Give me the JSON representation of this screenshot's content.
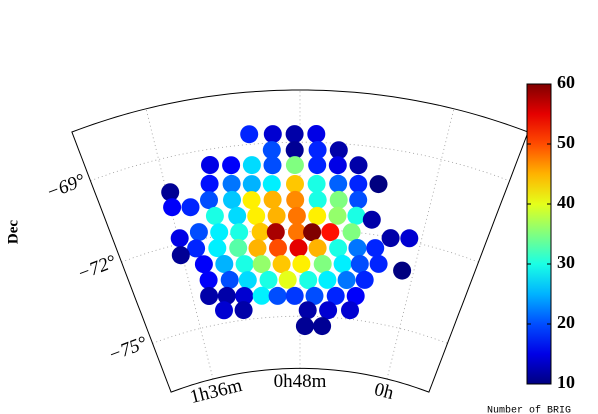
{
  "chart_data": {
    "type": "scatter",
    "ylabel": "Dec",
    "colorbar_label": "Number of BRIG",
    "colormap": "jet",
    "grid": true,
    "xlim": [
      2.0,
      -0.4
    ],
    "ylim": [
      -76.8,
      -67.2
    ],
    "xticks": [
      {
        "value": 1.6,
        "label": "1h36m"
      },
      {
        "value": 0.8,
        "label": "0h48m"
      },
      {
        "value": 0,
        "label": "0h"
      }
    ],
    "yticks": [
      {
        "value": -69,
        "label": "−69°"
      },
      {
        "value": -72,
        "label": "−72°"
      },
      {
        "value": -75,
        "label": "−75°"
      }
    ],
    "clim": [
      10,
      60
    ],
    "cticks": [
      10,
      20,
      30,
      40,
      50,
      60
    ],
    "x": [
      1.08,
      0.95,
      0.83,
      0.71,
      0.96,
      0.83,
      0.7,
      0.58,
      1.32,
      1.2,
      1.08,
      0.96,
      0.83,
      0.7,
      0.58,
      0.46,
      1.34,
      1.21,
      1.09,
      0.97,
      0.83,
      0.7,
      0.57,
      0.45,
      0.33,
      1.58,
      1.36,
      1.22,
      1.1,
      0.97,
      0.83,
      0.69,
      0.56,
      0.44,
      1.59,
      1.48,
      1.34,
      1.2,
      1.08,
      0.95,
      0.82,
      0.69,
      0.56,
      0.44,
      0.34,
      1.46,
      1.33,
      1.2,
      1.06,
      0.96,
      0.82,
      0.72,
      0.6,
      0.46,
      1.59,
      0.2,
      0.08,
      1.5,
      1.36,
      1.22,
      1.09,
      0.95,
      0.81,
      0.68,
      0.54,
      0.41,
      0.29,
      1.61,
      1.47,
      1.33,
      1.19,
      1.07,
      0.93,
      0.79,
      0.64,
      0.5,
      0.38,
      0.25,
      0.08,
      1.46,
      1.31,
      1.18,
      1.03,
      0.89,
      0.74,
      0.6,
      0.46,
      0.33,
      1.48,
      1.35,
      1.22,
      1.09,
      0.97,
      0.84,
      0.69,
      0.53,
      0.38,
      1.39,
      1.24,
      0.74,
      0.58,
      0.41,
      0.76,
      0.62
    ],
    "y": [
      -68.65,
      -68.7,
      -68.72,
      -68.71,
      -69.25,
      -69.27,
      -69.26,
      -69.23,
      -69.54,
      -69.65,
      -69.72,
      -69.77,
      -69.79,
      -69.78,
      -69.75,
      -69.69,
      -70.18,
      -70.29,
      -70.37,
      -70.42,
      -70.44,
      -70.43,
      -70.39,
      -70.33,
      -70.25,
      -70.19,
      -70.73,
      -70.84,
      -70.92,
      -70.96,
      -70.99,
      -70.98,
      -70.94,
      -70.88,
      -70.71,
      -70.85,
      -71.3,
      -71.41,
      -71.48,
      -71.52,
      -71.54,
      -71.53,
      -71.49,
      -71.43,
      -71.5,
      -71.75,
      -71.88,
      -71.98,
      -72.04,
      -72.08,
      -72.1,
      -72.1,
      -72.07,
      -72.01,
      -71.81,
      -72.02,
      -71.9,
      -72.28,
      -72.41,
      -72.51,
      -72.59,
      -72.63,
      -72.65,
      -72.64,
      -72.6,
      -72.53,
      -72.45,
      -72.39,
      -72.87,
      -72.99,
      -73.09,
      -73.15,
      -73.19,
      -73.2,
      -73.18,
      -73.13,
      -73.07,
      -72.97,
      -73.04,
      -73.44,
      -73.56,
      -73.65,
      -73.71,
      -73.74,
      -73.75,
      -73.72,
      -73.67,
      -73.59,
      -73.98,
      -74.09,
      -74.18,
      -74.24,
      -74.28,
      -74.3,
      -74.29,
      -74.25,
      -74.18,
      -74.56,
      -74.66,
      -74.79,
      -74.76,
      -74.69,
      -75.34,
      -75.32
    ],
    "values": [
      18,
      14,
      12,
      15,
      20,
      11,
      18,
      12,
      15,
      16,
      27,
      20,
      35,
      18,
      15,
      12,
      17,
      22,
      25,
      28,
      44,
      30,
      21,
      18,
      10,
      11,
      20,
      26,
      42,
      45,
      47,
      30,
      35,
      20,
      16,
      18,
      30,
      27,
      42,
      45,
      48,
      42,
      36,
      30,
      12,
      20,
      28,
      30,
      44,
      58,
      48,
      60,
      53,
      35,
      15,
      12,
      14,
      18,
      28,
      33,
      45,
      50,
      55,
      45,
      30,
      22,
      18,
      11,
      16,
      25,
      30,
      36,
      44,
      42,
      35,
      28,
      20,
      18,
      10,
      16,
      20,
      27,
      30,
      40,
      30,
      28,
      22,
      18,
      12,
      12,
      14,
      28,
      20,
      19,
      20,
      18,
      16,
      14,
      12,
      12,
      14,
      14,
      11,
      11
    ]
  }
}
